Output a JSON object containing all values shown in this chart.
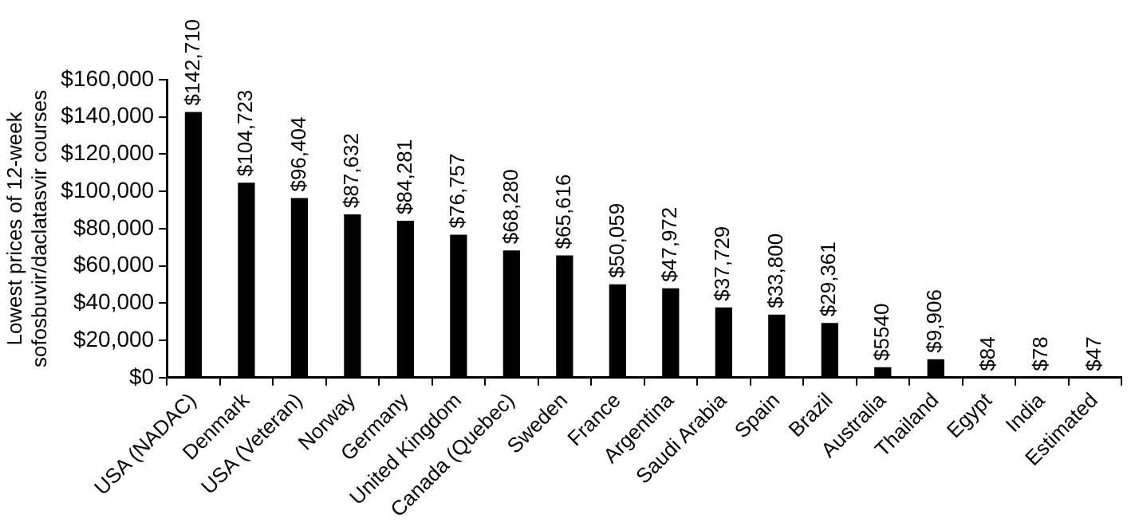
{
  "chart_data": {
    "type": "bar",
    "ylabel": "Lowest prices of 12-week\nsofosbuvir/daclatasvir courses",
    "categories": [
      "USA (NADAC)",
      "Denmark",
      "USA (Veteran)",
      "Norway",
      "Germany",
      "United Kingdom",
      "Canada (Quebec)",
      "Sweden",
      "France",
      "Argentina",
      "Saudi Arabia",
      "Spain",
      "Brazil",
      "Australia",
      "Thailand",
      "Egypt",
      "India",
      "Estimated"
    ],
    "values": [
      142710,
      104723,
      96404,
      87632,
      84281,
      76757,
      68280,
      65616,
      50059,
      47972,
      37729,
      33800,
      29361,
      5540,
      9906,
      84,
      78,
      47
    ],
    "value_labels": [
      "$142,710",
      "$104,723",
      "$96,404",
      "$87,632",
      "$84,281",
      "$76,757",
      "$68,280",
      "$65,616",
      "$50,059",
      "$47,972",
      "$37,729",
      "$33,800",
      "$29,361",
      "$5540",
      "$9,906",
      "$84",
      "$78",
      "$47"
    ],
    "color": "#000000",
    "ylim": [
      0,
      160000
    ],
    "yticks": [
      {
        "value": 0,
        "label": "$0"
      },
      {
        "value": 20000,
        "label": "$20,000"
      },
      {
        "value": 40000,
        "label": "$40,000"
      },
      {
        "value": 60000,
        "label": "$60,000"
      },
      {
        "value": 80000,
        "label": "$80,000"
      },
      {
        "value": 100000,
        "label": "$100,000"
      },
      {
        "value": 120000,
        "label": "$120,000"
      },
      {
        "value": 140000,
        "label": "$140,000"
      },
      {
        "value": 160000,
        "label": "$160,000"
      }
    ],
    "grid": false,
    "legend": false
  }
}
